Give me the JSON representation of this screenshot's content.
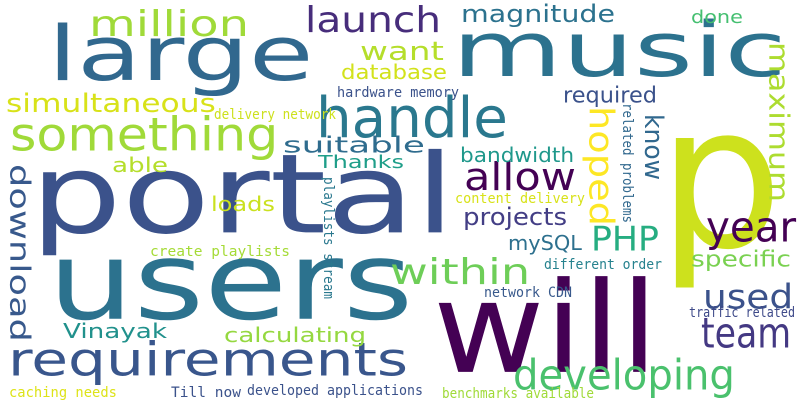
{
  "word_cloud": {
    "background": "#ffffff",
    "palette": {
      "dark_purple": "#440154",
      "indigo": "#3b528b",
      "blue": "#31688e",
      "teal": "#21918c",
      "green": "#35b779",
      "light_green": "#6ece58",
      "yellow_green": "#b5de2b",
      "yellow": "#fde725"
    },
    "words": [
      {
        "text": "p",
        "color": "#cde11d"
      },
      {
        "text": "portal",
        "color": "#3b528b"
      },
      {
        "text": "will",
        "color": "#440154"
      },
      {
        "text": "users",
        "color": "#2c728e"
      },
      {
        "text": "music",
        "color": "#2c728e"
      },
      {
        "text": "large",
        "color": "#31688e"
      },
      {
        "text": "requirements",
        "color": "#39568c"
      },
      {
        "text": "handle",
        "color": "#2a788e"
      },
      {
        "text": "something",
        "color": "#a0da39"
      },
      {
        "text": "developing",
        "color": "#4ac16d"
      },
      {
        "text": "download",
        "color": "#38598c"
      },
      {
        "text": "million",
        "color": "#a0da39"
      },
      {
        "text": "launch",
        "color": "#472d7b"
      },
      {
        "text": "maximum",
        "color": "#addc30"
      },
      {
        "text": "hoped",
        "color": "#fde725"
      },
      {
        "text": "allow",
        "color": "#440154"
      },
      {
        "text": "within",
        "color": "#6ece58"
      },
      {
        "text": "team",
        "color": "#443983"
      },
      {
        "text": "year",
        "color": "#440154"
      },
      {
        "text": "used",
        "color": "#3b528b"
      },
      {
        "text": "PHP",
        "color": "#26ad81"
      },
      {
        "text": "simultaneous",
        "color": "#d8e219"
      },
      {
        "text": "magnitude",
        "color": "#2c728e"
      },
      {
        "text": "want",
        "color": "#b5de2b"
      },
      {
        "text": "know",
        "color": "#31688e"
      },
      {
        "text": "database",
        "color": "#d2e21b"
      },
      {
        "text": "required",
        "color": "#3b528b"
      },
      {
        "text": "bandwidth",
        "color": "#1f988b"
      },
      {
        "text": "suitable",
        "color": "#2f6c8e"
      },
      {
        "text": "Thanks",
        "color": "#1f9e89"
      },
      {
        "text": "able",
        "color": "#b5de2b"
      },
      {
        "text": "loads",
        "color": "#cae11f"
      },
      {
        "text": "projects",
        "color": "#433e85"
      },
      {
        "text": "specific",
        "color": "#7ad151"
      },
      {
        "text": "mySQL",
        "color": "#2d708e"
      },
      {
        "text": "Vinayak",
        "color": "#21918c"
      },
      {
        "text": "calculating",
        "color": "#95d840"
      },
      {
        "text": "done",
        "color": "#44bf70"
      },
      {
        "text": "hardware memory",
        "color": "#3b528b"
      },
      {
        "text": "content delivery",
        "color": "#d8e219"
      },
      {
        "text": "delivery network",
        "color": "#cde11d"
      },
      {
        "text": "related problems",
        "color": "#31688e"
      },
      {
        "text": "playlists stream",
        "color": "#2a788e"
      },
      {
        "text": "create playlists",
        "color": "#a5db36"
      },
      {
        "text": "different order",
        "color": "#26828e"
      },
      {
        "text": "network CDN",
        "color": "#38598c"
      },
      {
        "text": "traffic related",
        "color": "#3e4a89"
      },
      {
        "text": "developed applications",
        "color": "#3b528b"
      },
      {
        "text": "Till now",
        "color": "#3b528b"
      },
      {
        "text": "benchmarks available",
        "color": "#a0da39"
      },
      {
        "text": "caching needs",
        "color": "#dde318"
      }
    ]
  }
}
